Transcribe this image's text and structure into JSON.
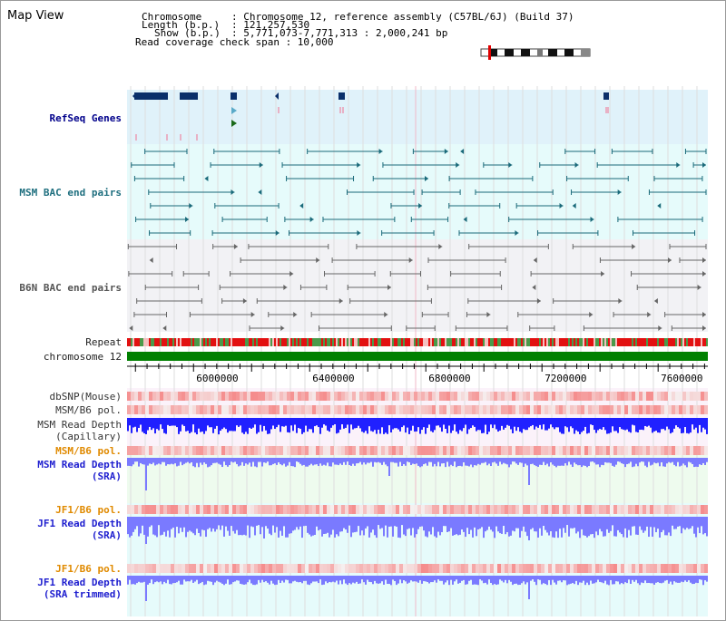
{
  "title": "Map View",
  "header": {
    "chromosome_key": "Chromosome",
    "chromosome_val": ": Chromosome 12, reference assembly (C57BL/6J) (Build 37)",
    "length_key": "Length (b.p.)",
    "length_val": ": 121,257,530",
    "show_key": "Show (b.p.)",
    "show_val": ": 5,771,073-7,771,313 : 2,000,241 bp",
    "coverage": "Read coverage check span : 10,000"
  },
  "tracks": {
    "refseq": "RefSeq Genes",
    "msm_bac": "MSM BAC end pairs",
    "b6n_bac": "B6N BAC end pairs",
    "repeat": "Repeat",
    "chromosome": "chromosome 12",
    "dbsnp": "dbSNP(Mouse)",
    "msm_b6_pol_1": "MSM/B6 pol.",
    "msm_read_depth_cap_1": "MSM Read Depth",
    "msm_read_depth_cap_2": "(Capillary)",
    "msm_b6_pol_2": "MSM/B6 pol.",
    "msm_read_depth_sra_1": "MSM Read Depth",
    "msm_read_depth_sra_2": "(SRA)",
    "jf1_b6_pol_1": "JF1/B6 pol.",
    "jf1_read_depth_sra_1": "JF1 Read Depth",
    "jf1_read_depth_sra_2": "(SRA)",
    "jf1_b6_pol_2": "JF1/B6 pol.",
    "jf1_read_depth_trim_1": "JF1 Read Depth",
    "jf1_read_depth_trim_2": "(SRA trimmed)"
  },
  "axis": {
    "range": [
      5771073,
      7771313
    ],
    "ticks": [
      "6000000",
      "6400000",
      "6800000",
      "7200000",
      "7600000"
    ]
  },
  "colors": {
    "refseq_bg": "#e0f2fa",
    "msm_bg": "#e6fbfb",
    "b6n_bg": "#f2f2f5",
    "chromosome_bar": "#008000",
    "repeat_red": "#e21010",
    "repeat_green": "#4a9a4a",
    "pol_red": "#f06060",
    "depth_blue": "#2020ff",
    "depth_light_blue": "#7a7aff",
    "msm_bac_color": "#1a6a7a",
    "b6n_bac_color": "#666666",
    "gene_color": "#0a2f6a"
  }
}
